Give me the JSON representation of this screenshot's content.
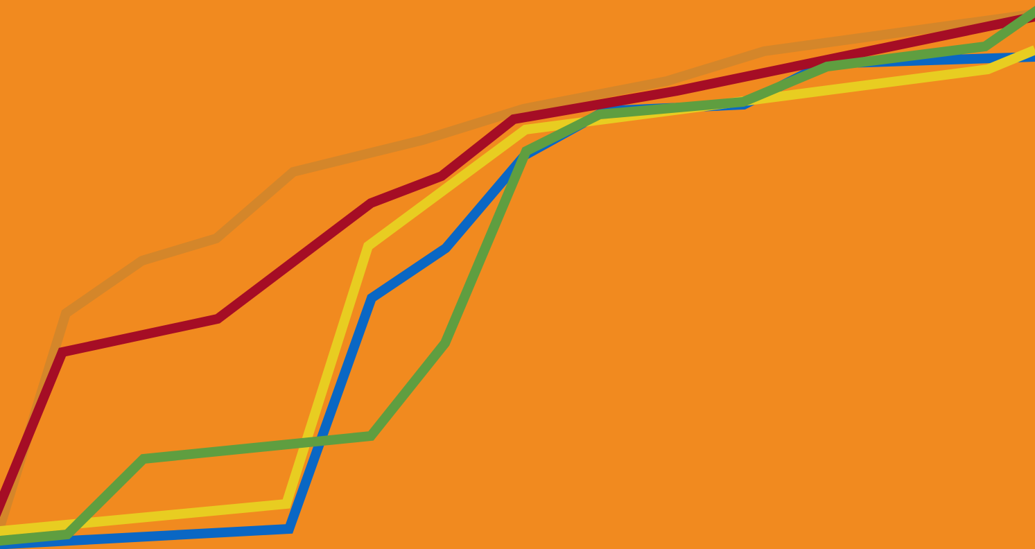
{
  "background": "#F18A1F",
  "stripes": [
    {
      "name": "stripe-faint-brown",
      "color": "#D4862A"
    },
    {
      "name": "stripe-blue",
      "color": "#0A67C4"
    },
    {
      "name": "stripe-yellow",
      "color": "#E8CD21"
    },
    {
      "name": "stripe-dark-red",
      "color": "#A50D25"
    },
    {
      "name": "stripe-green",
      "color": "#5F9E40"
    }
  ]
}
